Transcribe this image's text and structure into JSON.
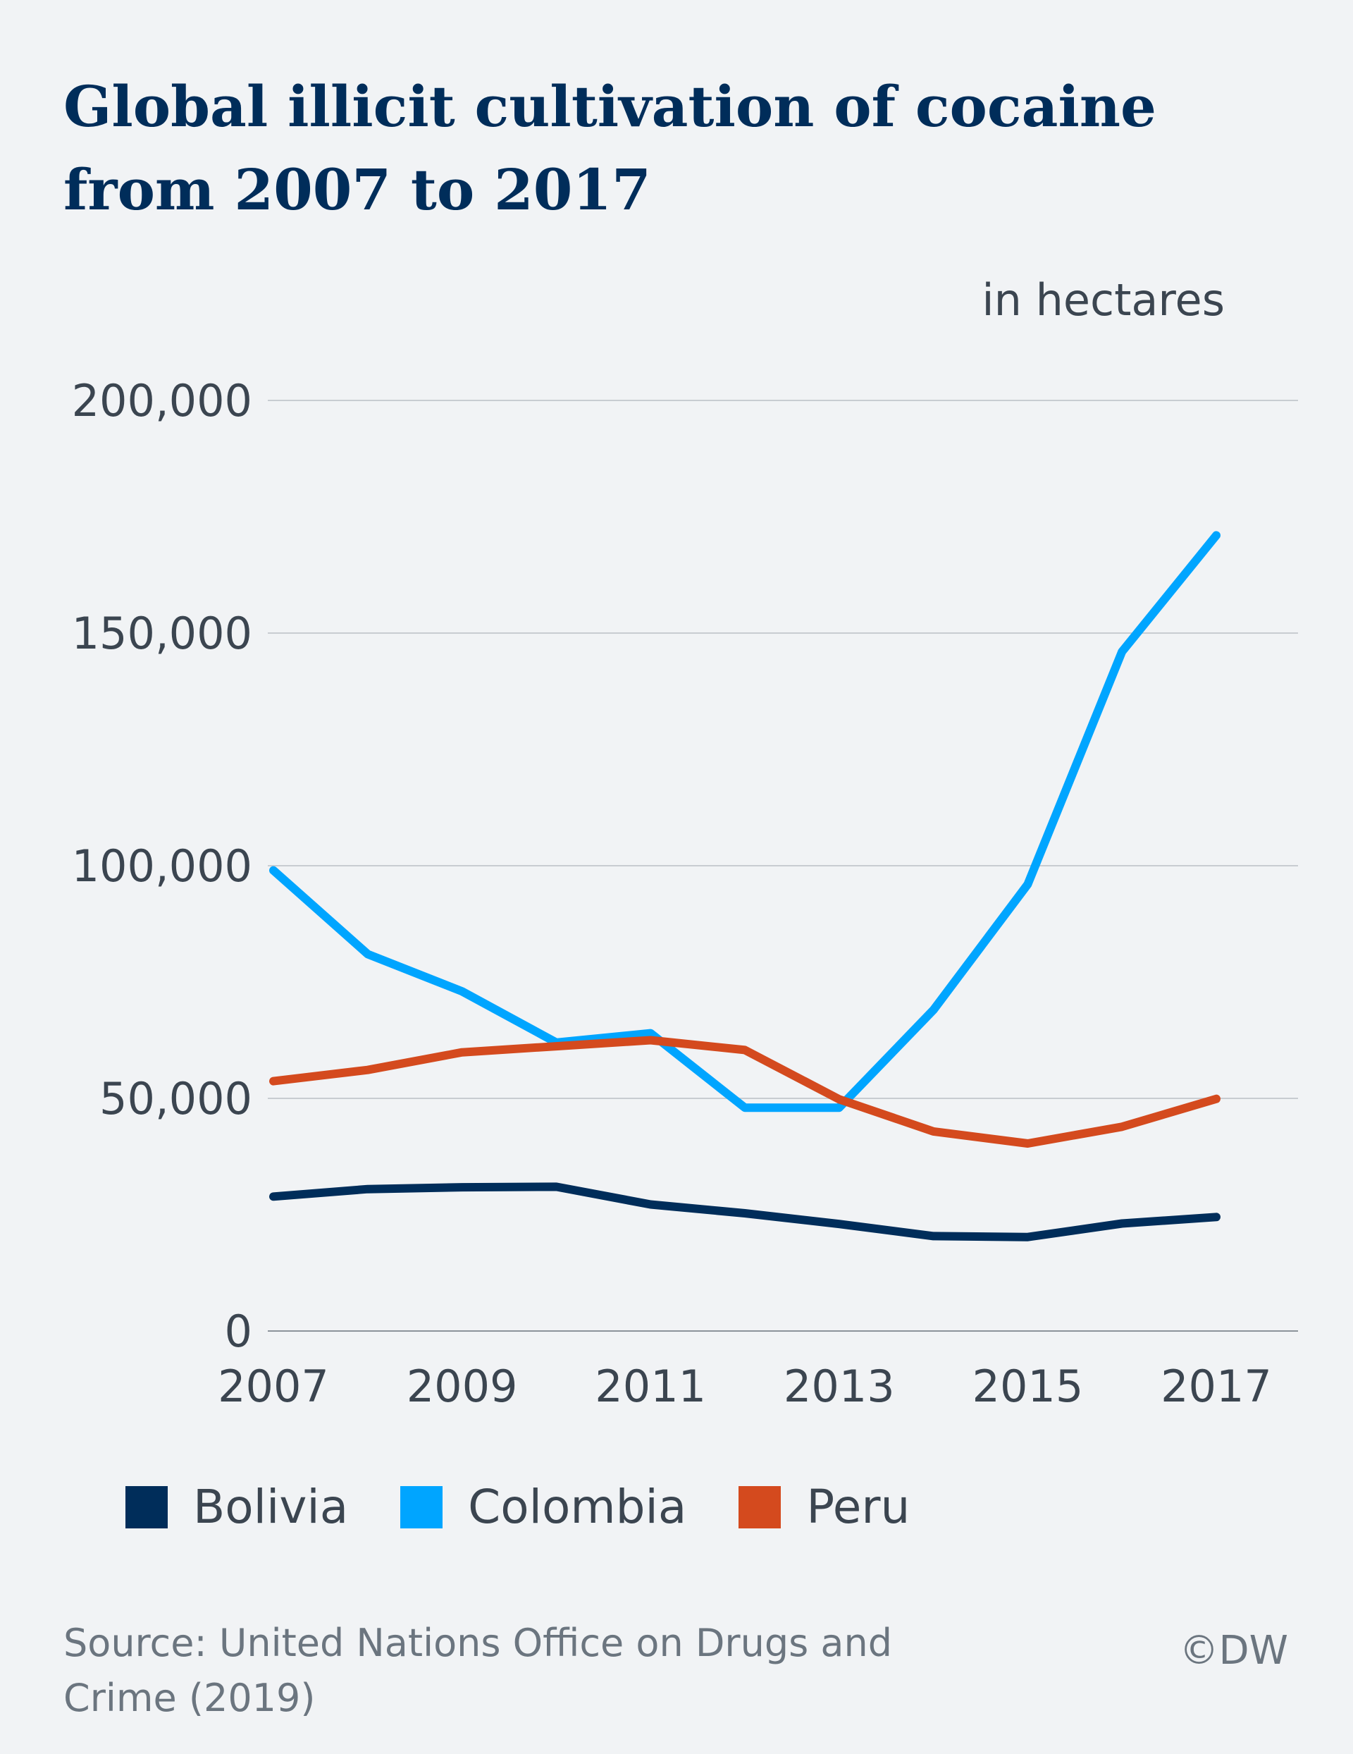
{
  "title_lines": [
    "Global illicit cultivation of cocaine",
    "from 2007 to 2017"
  ],
  "unit_label": "in hectares",
  "source": "Source: United Nations Office on Drugs and Crime (2019)",
  "copyright": "©DW",
  "colors": {
    "background": "#f1f3f5",
    "title": "#002d5a",
    "Bolivia": "#002d5a",
    "Colombia": "#00a5ff",
    "Peru": "#d44a1e",
    "grid": "#c8ccd1"
  },
  "chart_data": {
    "type": "line",
    "title": "Global illicit cultivation of cocaine from 2007 to 2017",
    "ylabel": "in hectares",
    "xlabel": "",
    "x": [
      2007,
      2008,
      2009,
      2010,
      2011,
      2012,
      2013,
      2014,
      2015,
      2016,
      2017
    ],
    "xlim": [
      2007,
      2018
    ],
    "ylim": [
      0,
      200000
    ],
    "x_ticks": [
      2007,
      2009,
      2011,
      2013,
      2015,
      2017
    ],
    "x_tick_labels": [
      "2007",
      "2009",
      "2011",
      "2013",
      "2015",
      "2017"
    ],
    "y_ticks": [
      0,
      50000,
      100000,
      150000,
      200000
    ],
    "y_tick_labels": [
      "0",
      "50,000",
      "100,000",
      "150,000",
      "200,000"
    ],
    "grid": true,
    "legend_position": "bottom",
    "series": [
      {
        "name": "Bolivia",
        "color": "#002d5a",
        "values": [
          28900,
          30500,
          30900,
          31000,
          27200,
          25300,
          23000,
          20400,
          20200,
          23100,
          24500
        ]
      },
      {
        "name": "Colombia",
        "color": "#00a5ff",
        "values": [
          99000,
          81000,
          73000,
          62000,
          64000,
          48000,
          48000,
          69000,
          96000,
          146000,
          171000
        ]
      },
      {
        "name": "Peru",
        "color": "#d44a1e",
        "values": [
          53700,
          56100,
          59900,
          61200,
          62500,
          60400,
          49800,
          42900,
          40300,
          43900,
          49900
        ]
      }
    ]
  }
}
